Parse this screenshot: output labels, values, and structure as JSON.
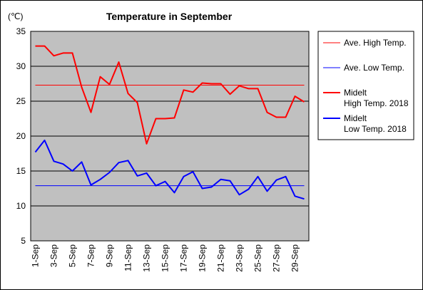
{
  "chart_data": {
    "type": "line",
    "title": "Temperature in September",
    "ylabel": "(℃)",
    "ylim": [
      5,
      35
    ],
    "yticks": [
      5,
      10,
      15,
      20,
      25,
      30,
      35
    ],
    "grid": true,
    "legend_position": "right",
    "plot_background": "#c0c0c0",
    "x": [
      "1-Sep",
      "2-Sep",
      "3-Sep",
      "4-Sep",
      "5-Sep",
      "6-Sep",
      "7-Sep",
      "8-Sep",
      "9-Sep",
      "10-Sep",
      "11-Sep",
      "12-Sep",
      "13-Sep",
      "14-Sep",
      "15-Sep",
      "16-Sep",
      "17-Sep",
      "18-Sep",
      "19-Sep",
      "20-Sep",
      "21-Sep",
      "22-Sep",
      "23-Sep",
      "24-Sep",
      "25-Sep",
      "26-Sep",
      "27-Sep",
      "28-Sep",
      "29-Sep",
      "30-Sep"
    ],
    "xtick_labels": [
      "1-Sep",
      "3-Sep",
      "5-Sep",
      "7-Sep",
      "9-Sep",
      "11-Sep",
      "13-Sep",
      "15-Sep",
      "17-Sep",
      "19-Sep",
      "21-Sep",
      "23-Sep",
      "25-Sep",
      "27-Sep",
      "29-Sep"
    ],
    "series": [
      {
        "name": "Ave. High Temp.",
        "color": "#ff0000",
        "width": 1,
        "values": [
          27.3,
          27.3,
          27.3,
          27.3,
          27.3,
          27.3,
          27.3,
          27.3,
          27.3,
          27.3,
          27.3,
          27.3,
          27.3,
          27.3,
          27.3,
          27.3,
          27.3,
          27.3,
          27.3,
          27.3,
          27.3,
          27.3,
          27.3,
          27.3,
          27.3,
          27.3,
          27.3,
          27.3,
          27.3,
          27.3
        ]
      },
      {
        "name": "Ave. Low Temp.",
        "color": "#0000ff",
        "width": 1,
        "values": [
          12.9,
          12.9,
          12.9,
          12.9,
          12.9,
          12.9,
          12.9,
          12.9,
          12.9,
          12.9,
          12.9,
          12.9,
          12.9,
          12.9,
          12.9,
          12.9,
          12.9,
          12.9,
          12.9,
          12.9,
          12.9,
          12.9,
          12.9,
          12.9,
          12.9,
          12.9,
          12.9,
          12.9,
          12.9,
          12.9
        ]
      },
      {
        "name": "Midelt\nHigh Temp. 2018",
        "color": "#ff0000",
        "width": 2,
        "values": [
          32.9,
          32.9,
          31.5,
          31.9,
          31.9,
          27.0,
          23.4,
          28.5,
          27.4,
          30.6,
          26.1,
          24.8,
          18.9,
          22.5,
          22.5,
          22.6,
          26.6,
          26.3,
          27.6,
          27.5,
          27.5,
          26.0,
          27.2,
          26.8,
          26.8,
          23.4,
          22.7,
          22.7,
          25.7,
          24.9
        ]
      },
      {
        "name": "Midelt\nLow Temp. 2018",
        "color": "#0000ff",
        "width": 2,
        "values": [
          17.7,
          19.4,
          16.4,
          16.0,
          15.0,
          16.3,
          13.0,
          13.8,
          14.8,
          16.2,
          16.5,
          14.3,
          14.7,
          12.9,
          13.5,
          11.9,
          14.2,
          14.9,
          12.5,
          12.7,
          13.8,
          13.6,
          11.6,
          12.4,
          14.2,
          12.1,
          13.7,
          14.2,
          11.4,
          11.0
        ]
      }
    ]
  }
}
